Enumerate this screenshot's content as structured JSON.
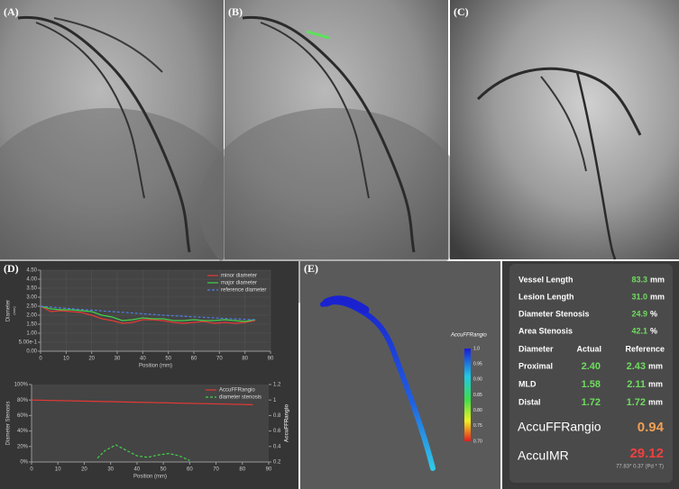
{
  "panels": {
    "a": "(A)",
    "b": "(B)",
    "c": "(C)",
    "d": "(D)",
    "e": "(E)"
  },
  "chart_data": [
    {
      "type": "line",
      "y_label": "Diameter",
      "y_unit": "(mm)",
      "x_label": "Position (mm)",
      "x": [
        0,
        4,
        8,
        12,
        16,
        20,
        24,
        28,
        32,
        36,
        40,
        44,
        48,
        52,
        56,
        60,
        64,
        68,
        72,
        76,
        80,
        84
      ],
      "xlim": [
        0,
        90
      ],
      "xticks": [
        0,
        10,
        20,
        30,
        40,
        50,
        60,
        70,
        80,
        90
      ],
      "ylim": [
        0,
        4.5
      ],
      "yticks": [
        {
          "value": 0,
          "label": "0.00"
        },
        {
          "value": 0.5,
          "label": "5.00e-1"
        },
        {
          "value": 1,
          "label": "1.00"
        },
        {
          "value": 1.5,
          "label": "1.50"
        },
        {
          "value": 2,
          "label": "2.00"
        },
        {
          "value": 2.5,
          "label": "2.50"
        },
        {
          "value": 3,
          "label": "3.00"
        },
        {
          "value": 3.5,
          "label": "3.50"
        },
        {
          "value": 4,
          "label": "4.00"
        },
        {
          "value": 4.5,
          "label": "4.50"
        }
      ],
      "grid": true,
      "legend": "top-right",
      "series": [
        {
          "name": "minor diameter",
          "color": "#e53935",
          "values": [
            2.5,
            2.2,
            2.25,
            2.2,
            2.15,
            2.0,
            1.8,
            1.7,
            1.55,
            1.6,
            1.75,
            1.75,
            1.7,
            1.6,
            1.55,
            1.6,
            1.65,
            1.55,
            1.6,
            1.55,
            1.6,
            1.7
          ]
        },
        {
          "name": "major diameter",
          "color": "#43d14a",
          "values": [
            2.5,
            2.35,
            2.3,
            2.3,
            2.25,
            2.2,
            2.0,
            1.9,
            1.7,
            1.75,
            1.85,
            1.8,
            1.8,
            1.7,
            1.7,
            1.75,
            1.7,
            1.7,
            1.75,
            1.7,
            1.65,
            1.75
          ]
        },
        {
          "name": "reference diameter",
          "color": "#4d7fe0",
          "dashed": true,
          "values": [
            2.5,
            2.45,
            2.4,
            2.36,
            2.32,
            2.28,
            2.24,
            2.2,
            2.16,
            2.12,
            2.08,
            2.04,
            2.0,
            1.97,
            1.94,
            1.91,
            1.88,
            1.85,
            1.82,
            1.8,
            1.77,
            1.75
          ]
        }
      ]
    },
    {
      "type": "line",
      "y_label": "Diameter Stenosis",
      "y2_label": "AccuFFRangio",
      "x_label": "Position (mm)",
      "xlim": [
        0,
        90
      ],
      "xticks": [
        0,
        10,
        20,
        30,
        40,
        50,
        60,
        70,
        80,
        90
      ],
      "ylim": [
        0,
        100
      ],
      "yticks": [
        {
          "value": 0,
          "label": "0%"
        },
        {
          "value": 20,
          "label": "20%"
        },
        {
          "value": 40,
          "label": "40%"
        },
        {
          "value": 60,
          "label": "60%"
        },
        {
          "value": 80,
          "label": "80%"
        },
        {
          "value": 100,
          "label": "100%"
        }
      ],
      "y2lim": [
        0.2,
        1.2
      ],
      "y2ticks": [
        0.2,
        0.4,
        0.6,
        0.8,
        1,
        1.2
      ],
      "legend": "top-right",
      "series": [
        {
          "name": "AccuFFRangio",
          "color": "#e53935",
          "axis": "y2",
          "x": [
            0,
            84
          ],
          "values": [
            1.0,
            0.94
          ]
        },
        {
          "name": "diameter stenosis",
          "color": "#43d14a",
          "dashed": true,
          "x": [
            25,
            28,
            32,
            36,
            40,
            44,
            48,
            52,
            56,
            60
          ],
          "values": [
            5,
            15,
            22,
            15,
            8,
            6,
            9,
            11,
            8,
            2
          ]
        }
      ]
    }
  ],
  "colorbar": {
    "title": "AccuFFRangio",
    "labels": [
      "1.0",
      "0.95",
      "0.90",
      "0.85",
      "0.80",
      "0.75",
      "0.70"
    ]
  },
  "results": {
    "summary": [
      [
        "Vessel Length",
        "83.3",
        "mm"
      ],
      [
        "Lesion Length",
        "31.0",
        "mm"
      ],
      [
        "Diameter Stenosis",
        "24.9",
        "%"
      ],
      [
        "Area Stenosis",
        "42.1",
        "%"
      ]
    ],
    "header": [
      "Diameter",
      "Actual",
      "Reference"
    ],
    "rows": [
      [
        "Proximal",
        "2.40",
        "2.43",
        "mm"
      ],
      [
        "MLD",
        "1.58",
        "2.11",
        "mm"
      ],
      [
        "Distal",
        "1.72",
        "1.72",
        "mm"
      ]
    ],
    "ffr": [
      "AccuFFRangio",
      "0.94"
    ],
    "imr": [
      "AccuIMR",
      "29.12"
    ],
    "imr_note": "77.83* 0.37 (Pd * T)"
  }
}
